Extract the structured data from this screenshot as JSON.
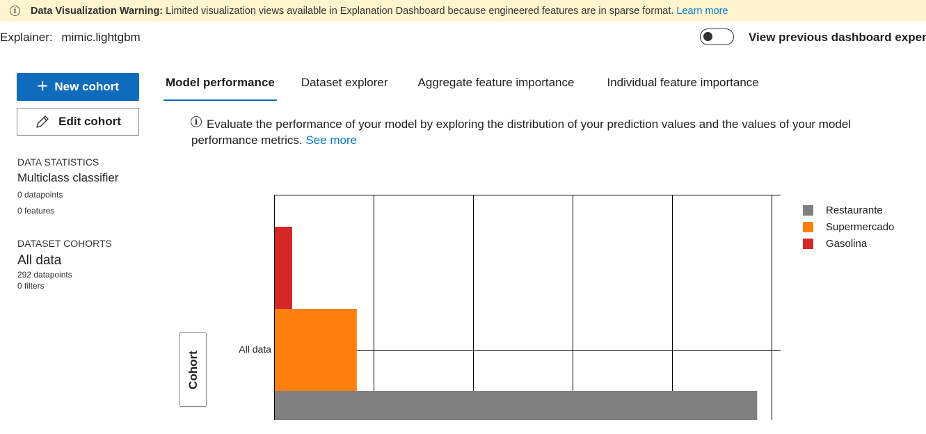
{
  "banner": {
    "title": "Data Visualization Warning:",
    "message": "Limited visualization views available in Explanation Dashboard because engineered features are in sparse format.",
    "link": "Learn more"
  },
  "explainer": {
    "label": "Explainer:",
    "value": "mimic.lightgbm"
  },
  "toggle": {
    "label": "View previous dashboard experi",
    "on": false
  },
  "buttons": {
    "new_cohort": "New cohort",
    "edit_cohort": "Edit cohort"
  },
  "sidebar": {
    "stats_heading": "DATA STATISTICS",
    "classifier": "Multiclass classifier",
    "datapoints": "0 datapoints",
    "features": "0 features",
    "cohorts_heading": "DATASET COHORTS",
    "cohort_name": "All data",
    "cohort_datapoints": "292 datapoints",
    "cohort_filters": "0 filters"
  },
  "tabs": [
    {
      "label": "Model performance",
      "active": true
    },
    {
      "label": "Dataset explorer",
      "active": false
    },
    {
      "label": "Aggregate feature importance",
      "active": false
    },
    {
      "label": "Individual feature importance",
      "active": false
    }
  ],
  "description": {
    "text": "Evaluate the performance of your model by exploring the distribution of your prediction values and the values of your model performance metrics.",
    "link": "See more"
  },
  "cohort_axis_button": "Cohort",
  "chart_data": {
    "type": "bar",
    "orientation": "horizontal",
    "categories": [
      "All data"
    ],
    "series": [
      {
        "name": "Restaurante",
        "values": [
          1
        ],
        "color": "#808080"
      },
      {
        "name": "Supermercado",
        "values": [
          0.17
        ],
        "color": "#ff7f0e"
      },
      {
        "name": "Gasolina",
        "values": [
          0.036
        ],
        "color": "#d62728"
      }
    ],
    "xlim": [
      0,
      1.05
    ],
    "grid": true,
    "legend": "right"
  }
}
